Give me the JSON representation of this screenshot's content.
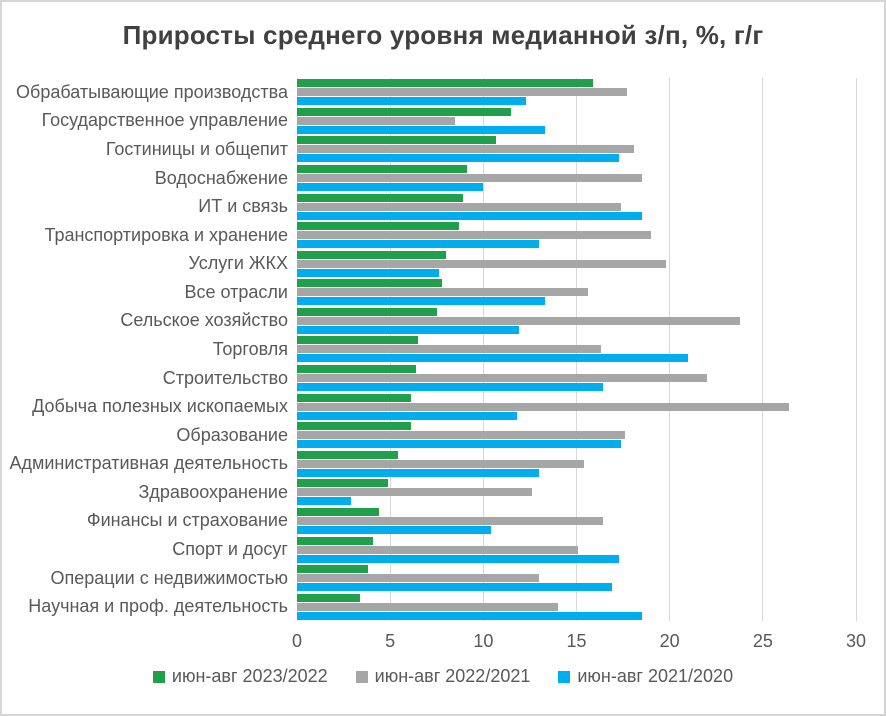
{
  "window": {
    "background": "#FFFFFF",
    "border_color": "#D6D6D6"
  },
  "styles": {
    "title_color": "#404040",
    "label_color": "#595959",
    "gridline_color": "#D9D9D9"
  },
  "chart_data": {
    "type": "bar",
    "orientation": "horizontal",
    "title": "Приросты среднего уровня медианной з/п, %, г/г",
    "xlabel": "",
    "ylabel": "",
    "xlim": [
      0,
      30
    ],
    "x_ticks": [
      0,
      5,
      10,
      15,
      20,
      25,
      30
    ],
    "grid": "vertical",
    "legend_position": "bottom",
    "categories": [
      "Обрабатывающие производства",
      "Государственное управление",
      "Гостиницы и общепит",
      "Водоснабжение",
      "ИТ и связь",
      "Транспортировка и хранение",
      "Услуги ЖКХ",
      "Все отрасли",
      "Сельское хозяйство",
      "Торговля",
      "Строительство",
      "Добыча полезных ископаемых",
      "Образование",
      "Административная деятельность",
      "Здравоохранение",
      "Финансы и страхование",
      "Спорт и досуг",
      "Операции с недвижимостью",
      "Научная и проф. деятельность"
    ],
    "series": [
      {
        "name": "июн-авг 2023/2022",
        "color": "#21A04B",
        "values": [
          15.9,
          11.5,
          10.7,
          9.1,
          8.9,
          8.7,
          8.0,
          7.8,
          7.5,
          6.5,
          6.4,
          6.1,
          6.1,
          5.4,
          4.9,
          4.4,
          4.1,
          3.8,
          3.4
        ]
      },
      {
        "name": "июн-авг 2022/2021",
        "color": "#A6A6A6",
        "values": [
          17.7,
          8.5,
          18.1,
          18.5,
          17.4,
          19.0,
          19.8,
          15.6,
          23.8,
          16.3,
          22.0,
          26.4,
          17.6,
          15.4,
          12.6,
          16.4,
          15.1,
          13.0,
          14.0
        ]
      },
      {
        "name": "июн-авг 2021/2020",
        "color": "#00AEEF",
        "values": [
          12.3,
          13.3,
          17.3,
          10.0,
          18.5,
          13.0,
          7.6,
          13.3,
          11.9,
          21.0,
          16.4,
          11.8,
          17.4,
          13.0,
          2.9,
          10.4,
          17.3,
          16.9,
          18.5
        ]
      }
    ]
  }
}
